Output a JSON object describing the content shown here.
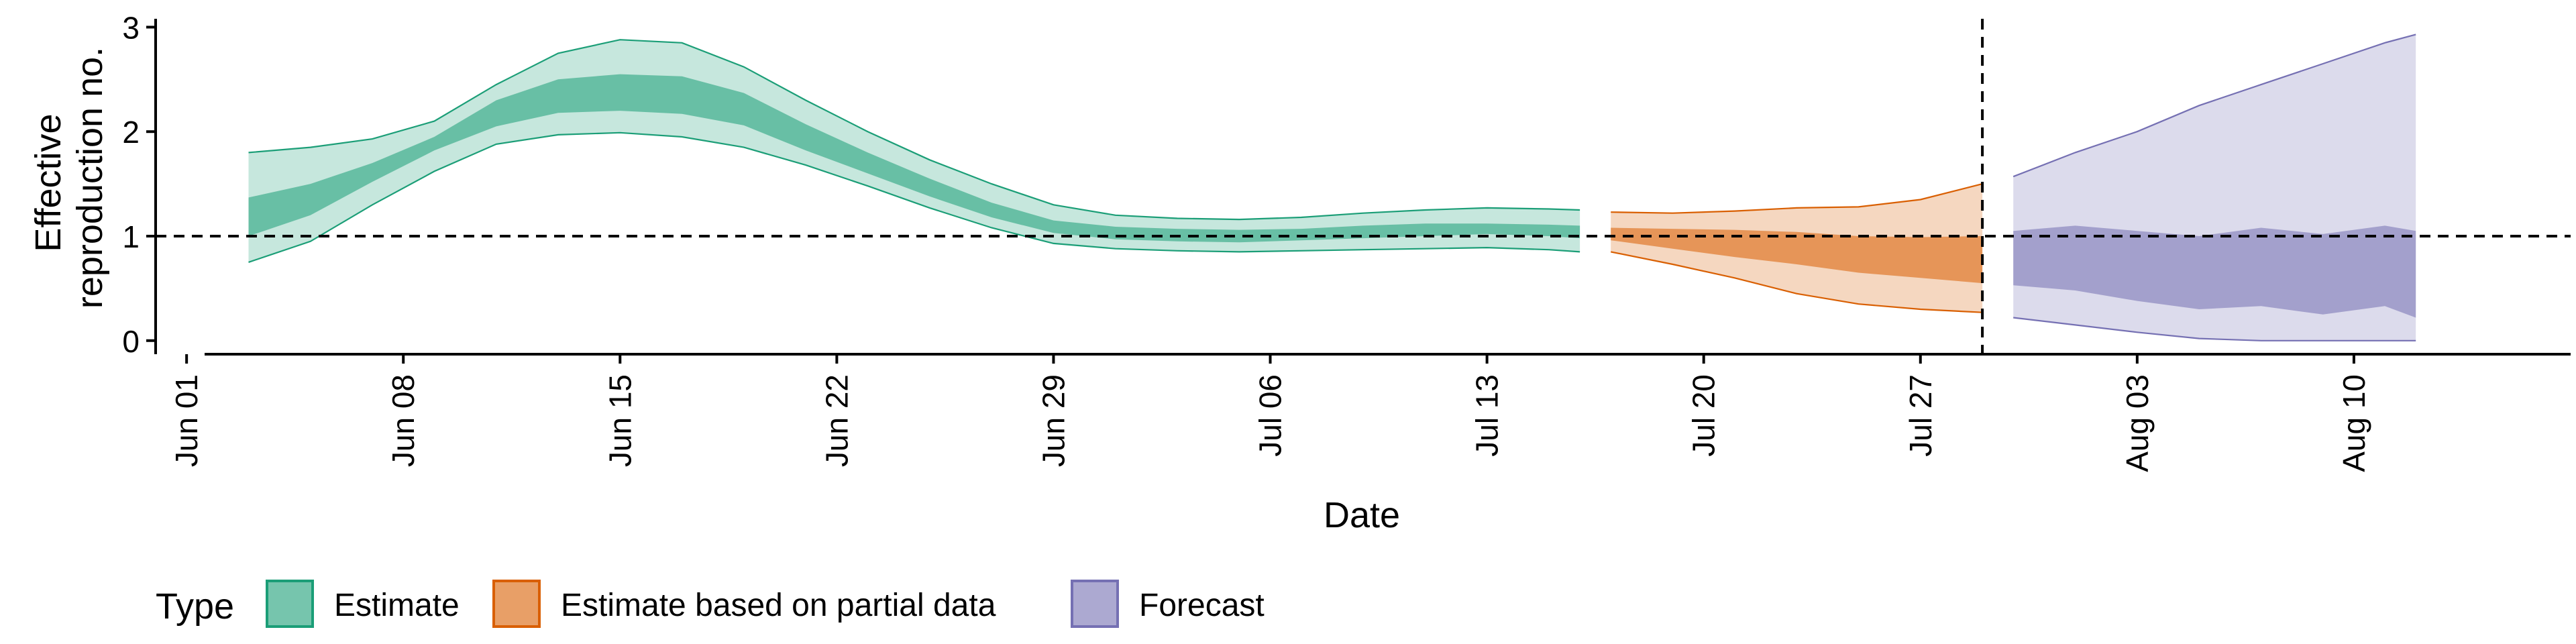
{
  "chart_data": {
    "type": "area",
    "xlabel": "Date",
    "ylabel_lines": [
      "Effective",
      "reproduction no."
    ],
    "x_ticks": [
      "Jun 01",
      "Jun 08",
      "Jun 15",
      "Jun 22",
      "Jun 29",
      "Jul 06",
      "Jul 13",
      "Jul 20",
      "Jul 27",
      "Aug 03",
      "Aug 10"
    ],
    "x_tick_dates": [
      "2020-06-01",
      "2020-06-08",
      "2020-06-15",
      "2020-06-22",
      "2020-06-29",
      "2020-07-06",
      "2020-07-13",
      "2020-07-20",
      "2020-07-27",
      "2020-08-03",
      "2020-08-10"
    ],
    "x_range": [
      "2020-05-31",
      "2020-08-17"
    ],
    "y_ticks": [
      0,
      1,
      2,
      3
    ],
    "ylim": [
      -0.13,
      3.08
    ],
    "reference_line_y": 1,
    "reference_line_date": "2020-07-29",
    "legend": {
      "title": "Type",
      "position": "bottom-left"
    },
    "series": [
      {
        "name": "Estimate",
        "color": "#1B9E77",
        "dates": [
          "2020-06-03",
          "2020-06-05",
          "2020-06-07",
          "2020-06-09",
          "2020-06-11",
          "2020-06-13",
          "2020-06-15",
          "2020-06-17",
          "2020-06-19",
          "2020-06-21",
          "2020-06-23",
          "2020-06-25",
          "2020-06-27",
          "2020-06-29",
          "2020-07-01",
          "2020-07-03",
          "2020-07-05",
          "2020-07-07",
          "2020-07-09",
          "2020-07-11",
          "2020-07-13",
          "2020-07-15",
          "2020-07-16"
        ],
        "outer_lower": [
          0.75,
          0.95,
          1.3,
          1.62,
          1.88,
          1.97,
          1.99,
          1.95,
          1.85,
          1.68,
          1.48,
          1.27,
          1.08,
          0.93,
          0.88,
          0.86,
          0.85,
          0.86,
          0.87,
          0.88,
          0.89,
          0.87,
          0.85
        ],
        "outer_upper": [
          1.8,
          1.85,
          1.93,
          2.1,
          2.45,
          2.75,
          2.88,
          2.85,
          2.62,
          2.3,
          2.0,
          1.73,
          1.5,
          1.3,
          1.2,
          1.17,
          1.16,
          1.18,
          1.22,
          1.25,
          1.27,
          1.26,
          1.25
        ],
        "inner_lower": [
          1.0,
          1.2,
          1.52,
          1.82,
          2.05,
          2.18,
          2.2,
          2.17,
          2.06,
          1.82,
          1.6,
          1.38,
          1.18,
          1.03,
          0.97,
          0.95,
          0.94,
          0.96,
          0.98,
          1.0,
          1.02,
          1.0,
          0.98
        ],
        "inner_upper": [
          1.37,
          1.5,
          1.7,
          1.95,
          2.3,
          2.5,
          2.55,
          2.53,
          2.37,
          2.07,
          1.8,
          1.55,
          1.32,
          1.15,
          1.09,
          1.07,
          1.06,
          1.07,
          1.1,
          1.12,
          1.12,
          1.11,
          1.1
        ]
      },
      {
        "name": "Estimate based on partial data",
        "color": "#D95F02",
        "dates": [
          "2020-07-17",
          "2020-07-19",
          "2020-07-21",
          "2020-07-23",
          "2020-07-25",
          "2020-07-27",
          "2020-07-29"
        ],
        "outer_lower": [
          0.85,
          0.73,
          0.6,
          0.45,
          0.35,
          0.3,
          0.27
        ],
        "outer_upper": [
          1.23,
          1.22,
          1.24,
          1.27,
          1.28,
          1.35,
          1.5
        ],
        "inner_lower": [
          0.96,
          0.88,
          0.8,
          0.73,
          0.65,
          0.6,
          0.55
        ],
        "inner_upper": [
          1.08,
          1.07,
          1.06,
          1.04,
          1.0,
          0.99,
          1.0
        ]
      },
      {
        "name": "Forecast",
        "color": "#7570B3",
        "dates": [
          "2020-07-30",
          "2020-08-01",
          "2020-08-03",
          "2020-08-05",
          "2020-08-07",
          "2020-08-09",
          "2020-08-11",
          "2020-08-12"
        ],
        "outer_lower": [
          0.22,
          0.15,
          0.08,
          0.02,
          0.0,
          0.0,
          0.0,
          0.0
        ],
        "outer_upper": [
          1.57,
          1.8,
          2.0,
          2.25,
          2.45,
          2.65,
          2.85,
          2.93
        ],
        "inner_lower": [
          0.53,
          0.48,
          0.38,
          0.3,
          0.33,
          0.25,
          0.33,
          0.22
        ],
        "inner_upper": [
          1.05,
          1.1,
          1.05,
          1.0,
          1.08,
          1.02,
          1.1,
          1.05
        ]
      }
    ]
  }
}
